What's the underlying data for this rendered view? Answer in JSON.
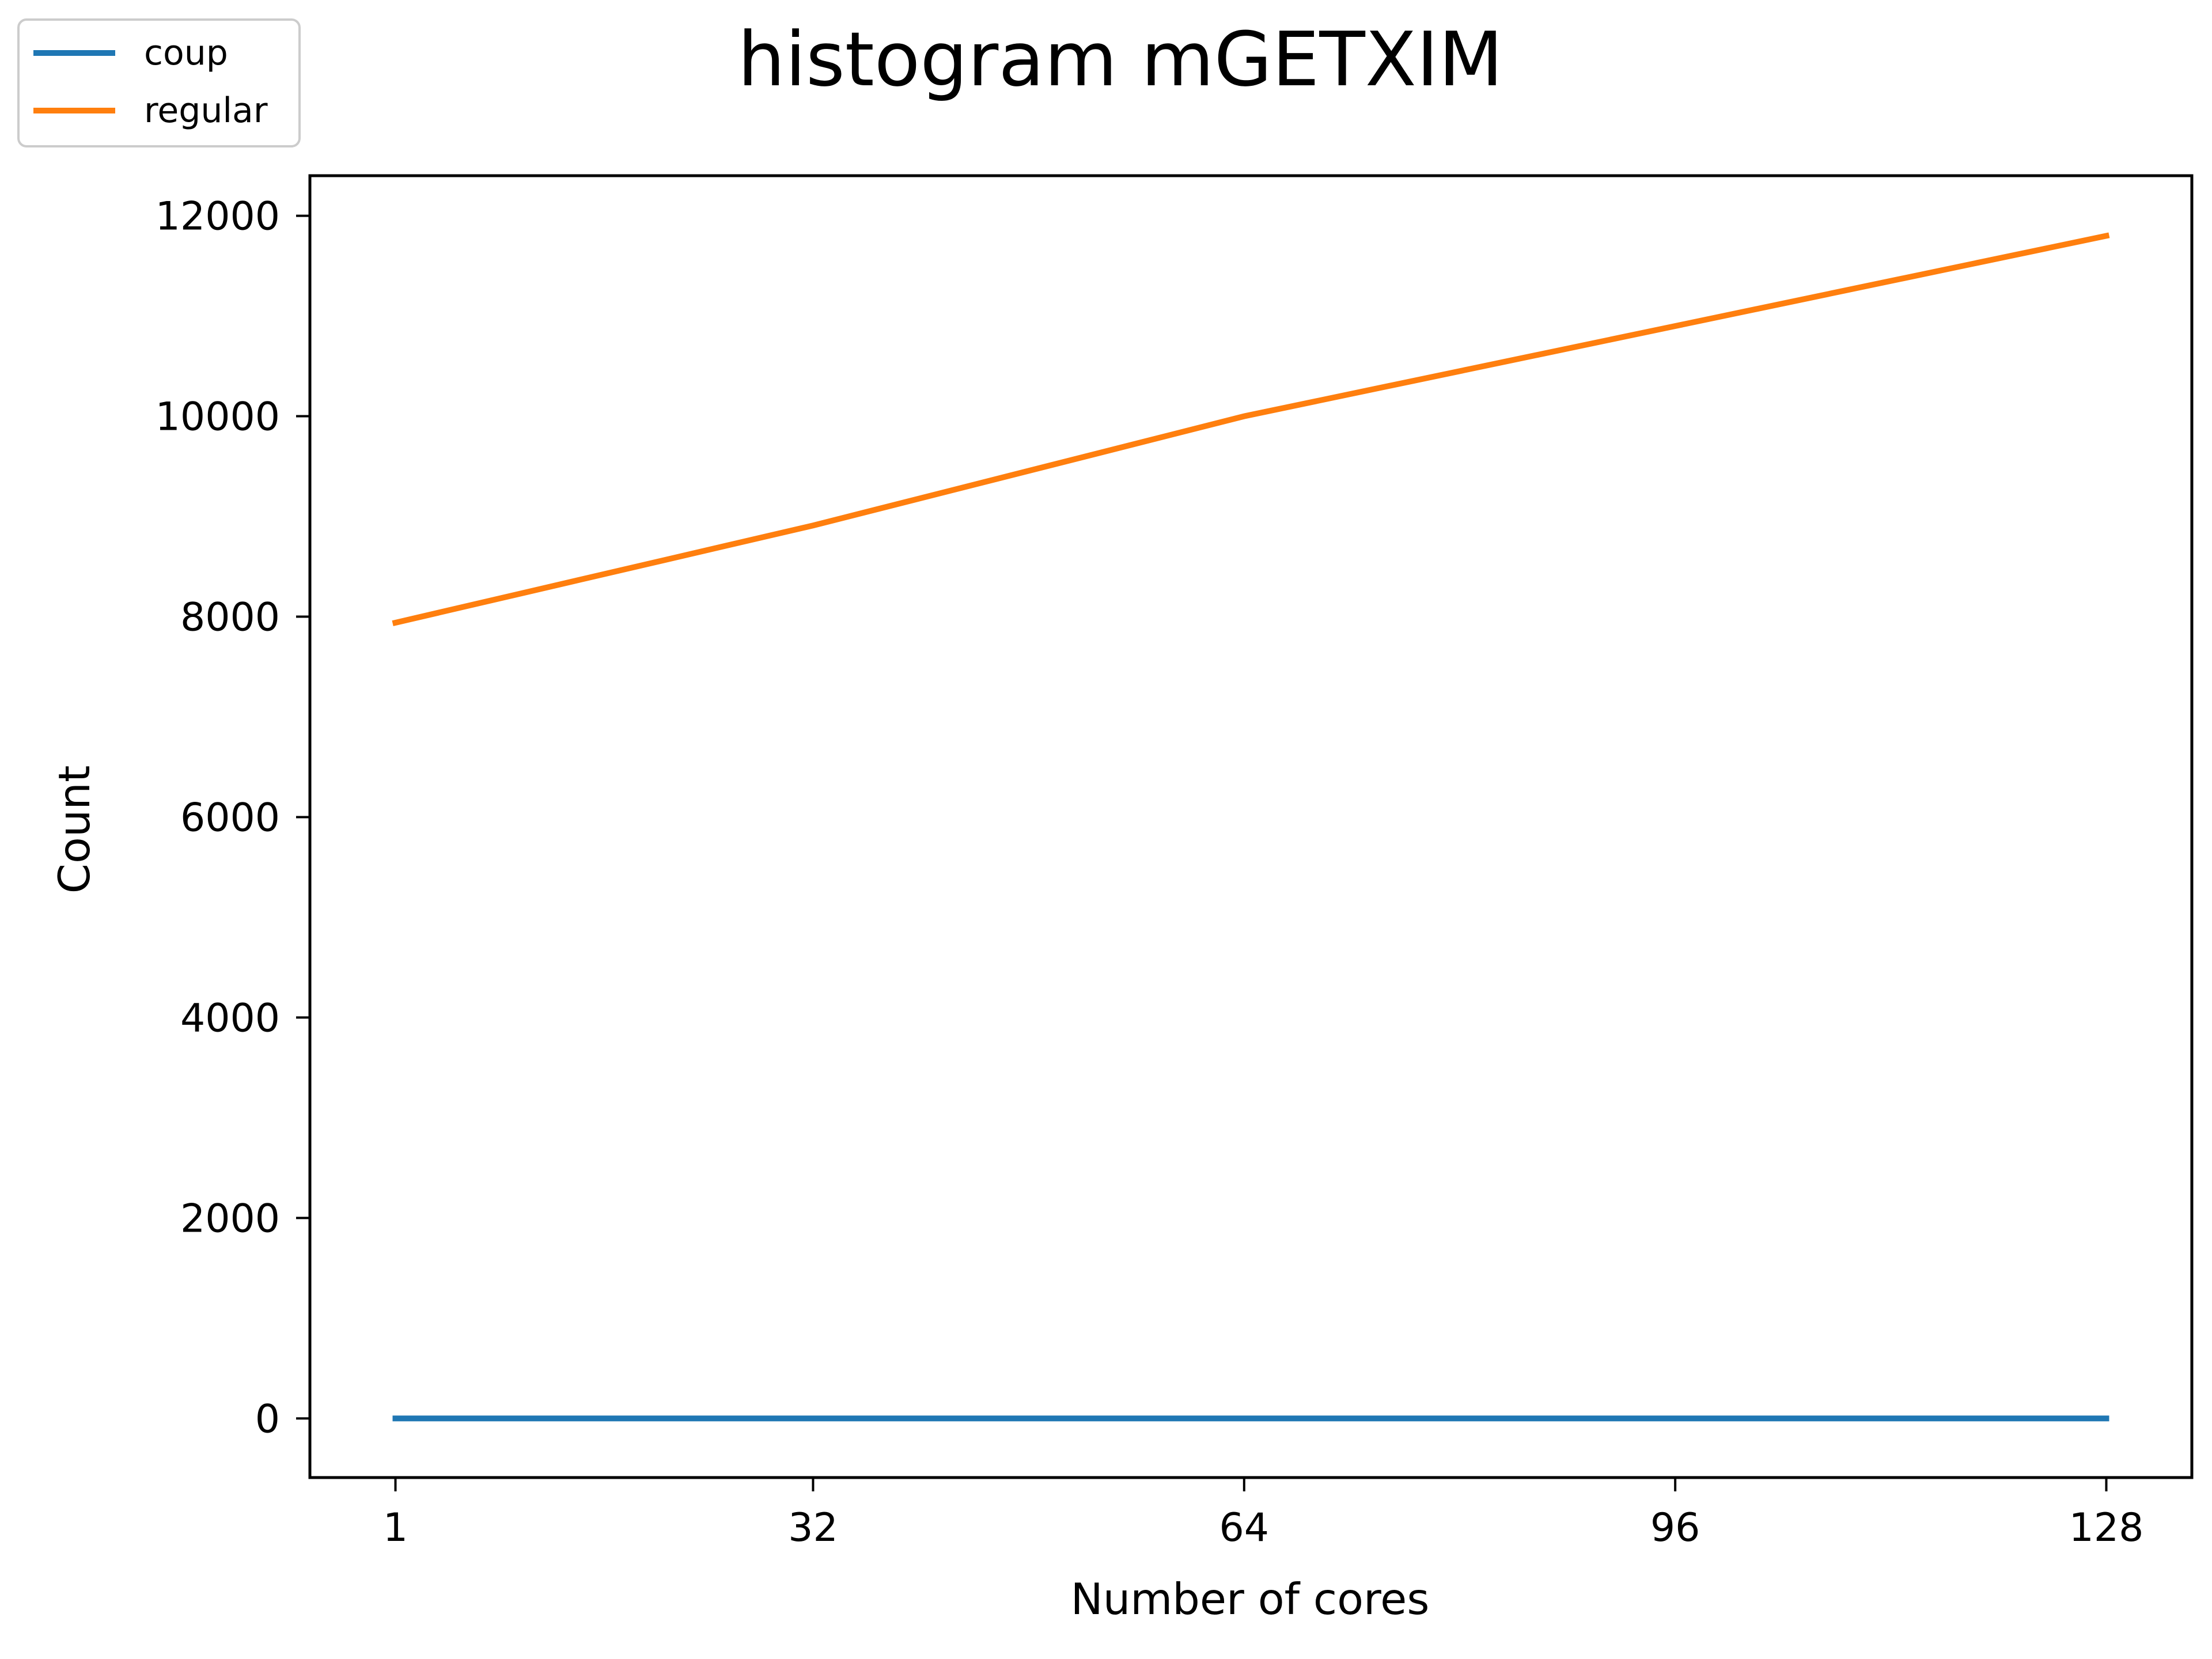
{
  "chart_data": {
    "type": "line",
    "title": "histogram mGETXIM",
    "xlabel": "Number of cores",
    "ylabel": "Count",
    "x": [
      1,
      32,
      64,
      96,
      128
    ],
    "xticks": [
      1,
      32,
      64,
      96,
      128
    ],
    "yticks": [
      0,
      2000,
      4000,
      6000,
      8000,
      10000,
      12000
    ],
    "xlim": [
      -5.35,
      134.35
    ],
    "ylim": [
      -590,
      12400
    ],
    "grid": false,
    "legend_position": "top-left",
    "series": [
      {
        "name": "coup",
        "color": "#1f77b4",
        "values": [
          0,
          0,
          0,
          0,
          0
        ]
      },
      {
        "name": "regular",
        "color": "#ff7f0e",
        "values": [
          7940,
          8910,
          10000,
          10900,
          11800
        ]
      }
    ]
  }
}
